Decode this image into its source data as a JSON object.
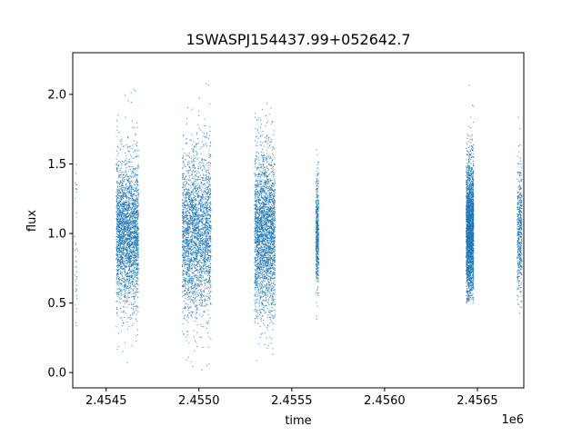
{
  "chart_data": {
    "type": "scatter",
    "title": "1SWASPJ154437.99+052642.7",
    "xlabel": "time",
    "ylabel": "flux",
    "x_offset_label": "1e6",
    "xlim": [
      2454320,
      2456750
    ],
    "ylim": [
      -0.11,
      2.3
    ],
    "x_ticks": [
      2454500,
      2455000,
      2455500,
      2456000,
      2456500
    ],
    "x_tick_labels": [
      "2.4545",
      "2.4550",
      "2.4555",
      "2.4560",
      "2.4565"
    ],
    "y_ticks": [
      0.0,
      0.5,
      1.0,
      1.5,
      2.0
    ],
    "y_tick_labels": [
      "0.0",
      "0.5",
      "1.0",
      "1.5",
      "2.0"
    ],
    "grid": false,
    "marker_color": "#1f77b4",
    "series": [
      {
        "clusters": [
          {
            "x_range": [
              2454330,
              2454345
            ],
            "y_range": [
              0.33,
              1.5
            ],
            "density": "sparse"
          },
          {
            "x_range": [
              2454555,
              2454675
            ],
            "y_range": [
              0.05,
              2.12
            ],
            "core_y": [
              0.6,
              1.4
            ],
            "density": "dense"
          },
          {
            "x_range": [
              2454910,
              2455065
            ],
            "y_range": [
              0.0,
              2.1
            ],
            "core_y": [
              0.55,
              1.45
            ],
            "density": "dense"
          },
          {
            "x_range": [
              2455300,
              2455410
            ],
            "y_range": [
              0.04,
              2.02
            ],
            "core_y": [
              0.55,
              1.45
            ],
            "density": "dense"
          },
          {
            "x_range": [
              2455630,
              2455645
            ],
            "y_range": [
              0.38,
              1.85
            ],
            "core_y": [
              0.7,
              1.3
            ],
            "density": "medium"
          },
          {
            "x_range": [
              2456440,
              2456480
            ],
            "y_range": [
              0.5,
              2.18
            ],
            "core_y": [
              0.65,
              1.4
            ],
            "density": "dense"
          },
          {
            "x_range": [
              2456715,
              2456740
            ],
            "y_range": [
              0.35,
              1.97
            ],
            "core_y": [
              0.6,
              1.35
            ],
            "density": "medium"
          }
        ]
      }
    ]
  }
}
